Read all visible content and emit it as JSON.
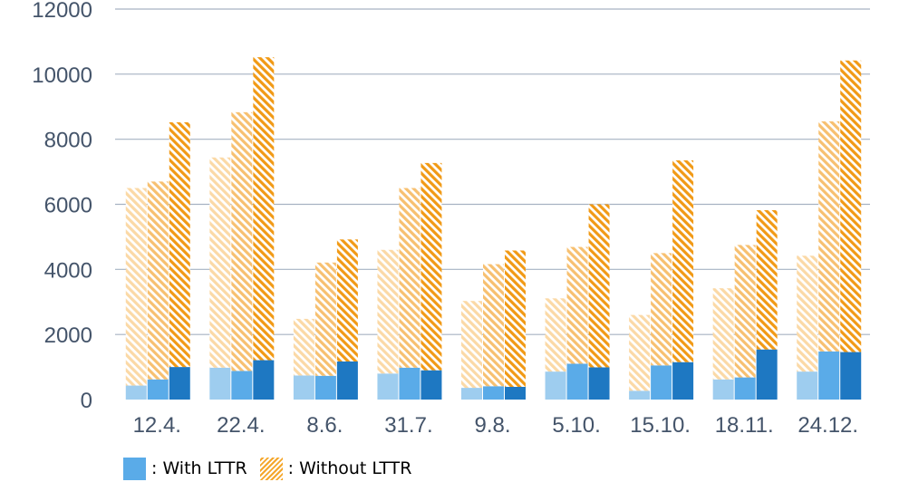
{
  "chart_data": {
    "type": "bar",
    "categories": [
      "12.4.",
      "22.4.",
      "8.6.",
      "31.7.",
      "9.8.",
      "5.10.",
      "15.10.",
      "18.11.",
      "24.12."
    ],
    "ylim": [
      0,
      12000
    ],
    "yticks": [
      0,
      2000,
      4000,
      6000,
      8000,
      10000,
      12000
    ],
    "grid": true,
    "stacked": true,
    "bars_per_category": 3,
    "series": [
      {
        "name": "With LTTR",
        "legend_color": "#5aabe8",
        "shade_colors": [
          "#9ecdef",
          "#5aabe8",
          "#1e78c2"
        ],
        "values": [
          [
            430,
            620,
            1000
          ],
          [
            980,
            880,
            1210
          ],
          [
            740,
            730,
            1170
          ],
          [
            800,
            980,
            900
          ],
          [
            360,
            410,
            390
          ],
          [
            860,
            1100,
            990
          ],
          [
            270,
            1050,
            1150
          ],
          [
            620,
            680,
            1540
          ],
          [
            860,
            1480,
            1460
          ]
        ]
      },
      {
        "name": "Without LTTR",
        "legend_color": "#f4a62a",
        "shade_colors": [
          "#fbd9a6",
          "#f7c070",
          "#f19a16"
        ],
        "values": [
          [
            6070,
            6080,
            7520
          ],
          [
            6460,
            7950,
            9310
          ],
          [
            1740,
            3480,
            3750
          ],
          [
            3800,
            5520,
            6370
          ],
          [
            2670,
            3750,
            4190
          ],
          [
            2250,
            3590,
            5010
          ],
          [
            2330,
            3450,
            6200
          ],
          [
            2800,
            4070,
            4280
          ],
          [
            3560,
            7070,
            8960
          ]
        ]
      }
    ]
  },
  "legend": {
    "with_label": ": With LTTR",
    "without_label": ": Without LTTR"
  }
}
